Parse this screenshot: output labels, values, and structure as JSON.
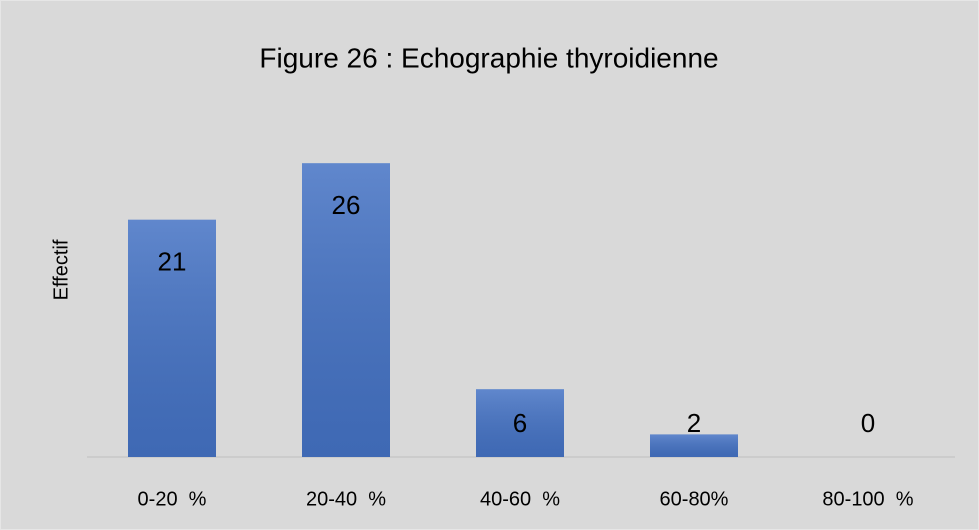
{
  "chart_data": {
    "type": "bar",
    "title": "Figure 26 : Echographie thyroidienne",
    "y_label": "Effectif",
    "categories": [
      "0-20  %",
      "20-40  %",
      "40-60  %",
      "60-80%",
      "80-100  %"
    ],
    "values": [
      21,
      26,
      6,
      2,
      0
    ],
    "color": "#4472c4",
    "ylim": [
      0,
      30
    ]
  }
}
